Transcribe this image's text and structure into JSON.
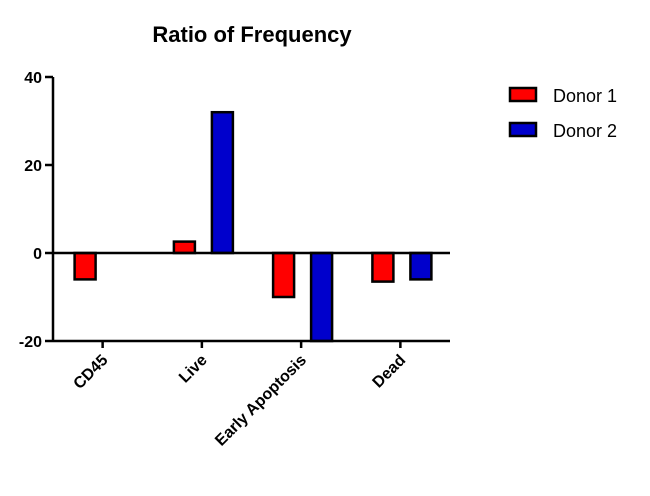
{
  "chart_data": {
    "type": "bar",
    "title": "Ratio of Frequency",
    "categories": [
      "CD45",
      "Live",
      "Early Apoptosis",
      "Dead"
    ],
    "series": [
      {
        "name": "Donor 1",
        "color": "#ff0000",
        "values": [
          -6,
          2.6,
          -10,
          -6.5
        ]
      },
      {
        "name": "Donor 2",
        "color": "#0000cc",
        "values": [
          null,
          32,
          -20,
          -6
        ]
      }
    ],
    "ylim": [
      -20,
      40
    ],
    "yticks": [
      -20,
      0,
      20,
      40
    ],
    "ytick_labels": [
      "-20",
      "0",
      "20",
      "40"
    ],
    "xlabel": "",
    "ylabel": "",
    "grid": false,
    "legend_position": "top-right"
  }
}
